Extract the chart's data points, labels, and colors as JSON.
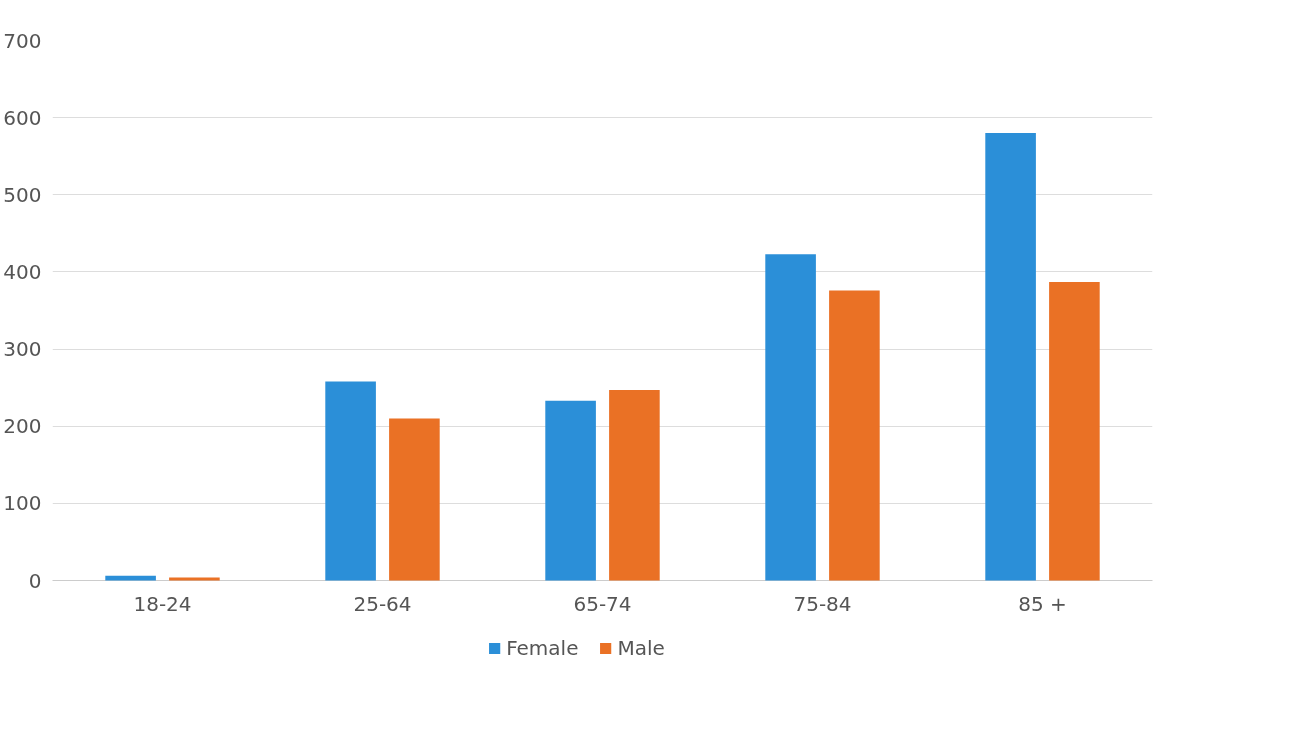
{
  "chart_data": {
    "type": "bar",
    "categories": [
      "18-24",
      "25-64",
      "65-74",
      "75-84",
      "85 +"
    ],
    "series": [
      {
        "name": "Female",
        "color": "#2b8fd8",
        "values": [
          6,
          258,
          233,
          423,
          580
        ]
      },
      {
        "name": "Male",
        "color": "#ea7125",
        "values": [
          4,
          210,
          247,
          376,
          387
        ]
      }
    ],
    "ylim": [
      0,
      700
    ],
    "yticks": [
      0,
      100,
      200,
      300,
      400,
      500,
      600,
      700
    ],
    "grid": "y",
    "legend": "bottom"
  }
}
